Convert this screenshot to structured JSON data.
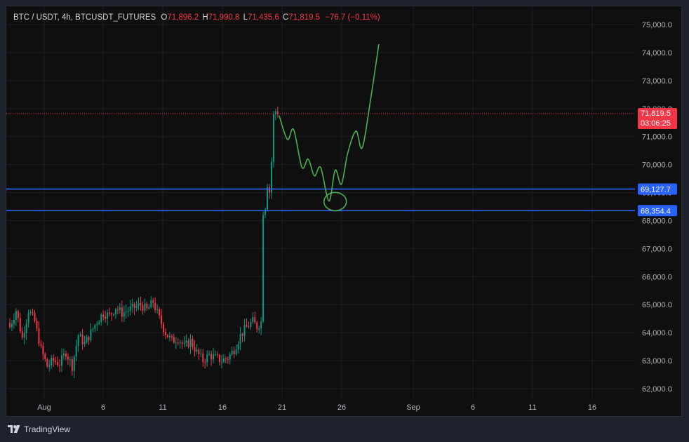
{
  "legend": {
    "symbol": "BTC / USDT, 4h, BTCUSDT_FUTURES",
    "open_label": "O",
    "open": "71,896.2",
    "high_label": "H",
    "high": "71,990.8",
    "low_label": "L",
    "low": "71,435.6",
    "close_label": "C",
    "close": "71,819.5",
    "change": "−76.7 (−0.11%)"
  },
  "price_axis": {
    "ticks": [
      "75,000.0",
      "74,000.0",
      "73,000.0",
      "72,000.0",
      "71,000.0",
      "70,000.0",
      "69,000.0",
      "68,000.0",
      "67,000.0",
      "66,000.0",
      "65,000.0",
      "64,000.0",
      "63,000.0",
      "62,000.0"
    ],
    "current_price": "71,819.5",
    "countdown": "03:06:25",
    "levels": [
      "69,127.7",
      "68,354.4"
    ]
  },
  "time_axis": {
    "ticks": [
      "Aug",
      "6",
      "11",
      "16",
      "21",
      "26",
      "Sep",
      "6",
      "11",
      "16"
    ]
  },
  "colors": {
    "up": "#089981",
    "down": "#f23645",
    "level_line": "#2962ff",
    "drawing": "#4caf50",
    "background": "#0f0f0f"
  },
  "footer": {
    "brand": "TradingView",
    "logo_icon": "tradingview-logo-icon"
  },
  "chart_data": {
    "type": "candlestick",
    "symbol": "BTC / USDT, 4h, BTCUSDT_FUTURES",
    "ylim": [
      61800,
      75500
    ],
    "current_price": 71819.5,
    "horizontal_levels": [
      69127.7,
      68354.4
    ],
    "y_ticks": [
      62000,
      63000,
      64000,
      65000,
      66000,
      67000,
      68000,
      69000,
      70000,
      71000,
      72000,
      73000,
      74000,
      75000
    ],
    "x_tick_labels": [
      "Aug",
      "6",
      "11",
      "16",
      "21",
      "26",
      "Sep",
      "6",
      "11",
      "16"
    ],
    "close_path": [
      [
        0,
        64200
      ],
      [
        3,
        64800
      ],
      [
        6,
        63800
      ],
      [
        9,
        64800
      ],
      [
        12,
        64400
      ],
      [
        15,
        63400
      ],
      [
        18,
        62800
      ],
      [
        21,
        63000
      ],
      [
        24,
        62900
      ],
      [
        27,
        63300
      ],
      [
        30,
        62800
      ],
      [
        33,
        63900
      ],
      [
        36,
        63600
      ],
      [
        39,
        64000
      ],
      [
        42,
        64400
      ],
      [
        45,
        64700
      ],
      [
        48,
        64600
      ],
      [
        51,
        64900
      ],
      [
        54,
        64700
      ],
      [
        57,
        64800
      ],
      [
        60,
        64900
      ],
      [
        63,
        65000
      ],
      [
        66,
        64800
      ],
      [
        69,
        65100
      ],
      [
        72,
        64500
      ],
      [
        75,
        64000
      ],
      [
        78,
        63700
      ],
      [
        81,
        63800
      ],
      [
        84,
        63500
      ],
      [
        87,
        63700
      ],
      [
        90,
        63300
      ],
      [
        93,
        63000
      ],
      [
        96,
        63200
      ],
      [
        99,
        63100
      ],
      [
        102,
        63000
      ],
      [
        105,
        63100
      ],
      [
        108,
        63400
      ],
      [
        111,
        63900
      ],
      [
        114,
        64200
      ],
      [
        117,
        64400
      ],
      [
        119,
        64200
      ],
      [
        121,
        64400
      ],
      [
        122,
        68200
      ],
      [
        123,
        68400
      ],
      [
        124,
        69200
      ],
      [
        125,
        69000
      ],
      [
        126,
        70100
      ],
      [
        127,
        71800
      ],
      [
        128,
        71900
      ],
      [
        129,
        71820
      ]
    ],
    "forecast_drawing": [
      [
        130,
        71750
      ],
      [
        134,
        70900
      ],
      [
        137,
        71250
      ],
      [
        141,
        69900
      ],
      [
        144,
        70200
      ],
      [
        147,
        69600
      ],
      [
        150,
        69900
      ],
      [
        154,
        68700
      ],
      [
        157,
        69800
      ],
      [
        160,
        69300
      ],
      [
        163,
        70400
      ],
      [
        167,
        71200
      ],
      [
        170,
        70600
      ],
      [
        174,
        72300
      ],
      [
        178,
        74300
      ]
    ]
  }
}
